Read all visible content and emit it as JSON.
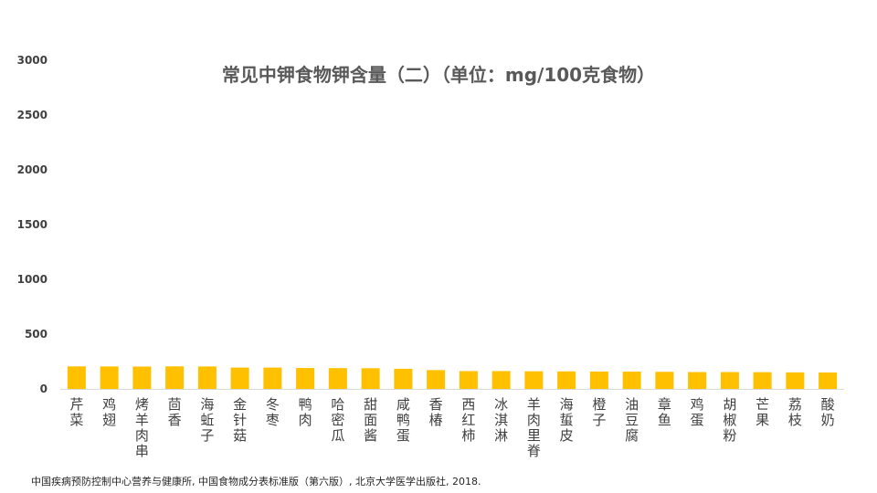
{
  "chart_data": {
    "type": "bar",
    "title": "常见中钾食物钾含量（二）（单位：mg/100克食物）",
    "xlabel": "",
    "ylabel": "",
    "ylim": [
      0,
      3000
    ],
    "yticks": [
      0,
      500,
      1000,
      1500,
      2000,
      2500,
      3000
    ],
    "grid": false,
    "legend": "none",
    "bar_color": "#FFC000",
    "categories": [
      "芹菜",
      "鸡翅",
      "烤羊肉串",
      "茴香",
      "海蚯子",
      "金针菇",
      "冬枣",
      "鸭肉",
      "哈密瓜",
      "甜面酱",
      "咸鸭蛋",
      "香椿",
      "西红柿",
      "冰淇淋",
      "羊肉里脊",
      "海蜇皮",
      "橙子",
      "油豆腐",
      "章鱼",
      "鸡蛋",
      "胡椒粉",
      "芒果",
      "荔枝",
      "酸奶"
    ],
    "values": [
      206,
      205,
      204,
      206,
      205,
      195,
      195,
      191,
      190,
      189,
      184,
      172,
      163,
      163,
      161,
      160,
      159,
      158,
      156,
      154,
      154,
      153,
      151,
      150
    ]
  },
  "source": "中国疾病预防控制中心营养与健康所, 中国食物成分表标准版（第六版）, 北京大学医学出版社, 2018."
}
